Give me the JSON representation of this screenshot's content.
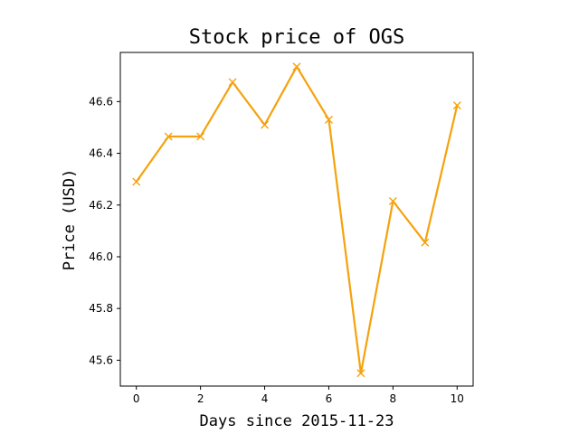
{
  "chart_data": {
    "type": "line",
    "title": "Stock price of OGS",
    "xlabel": "Days since 2015-11-23",
    "ylabel": "Price (USD)",
    "xlim": [
      -0.5,
      10.5
    ],
    "ylim": [
      45.5,
      46.79
    ],
    "x_ticks": [
      0,
      2,
      4,
      6,
      8,
      10
    ],
    "y_ticks": [
      45.6,
      45.8,
      46.0,
      46.2,
      46.4,
      46.6
    ],
    "grid": false,
    "series": [
      {
        "color": "#f5a20c",
        "marker": "x",
        "x": [
          0,
          1,
          2,
          3,
          4,
          5,
          6,
          7,
          8,
          9,
          10
        ],
        "values": [
          46.29,
          46.465,
          46.465,
          46.675,
          46.51,
          46.735,
          46.53,
          45.55,
          46.215,
          46.055,
          46.585
        ]
      }
    ]
  }
}
